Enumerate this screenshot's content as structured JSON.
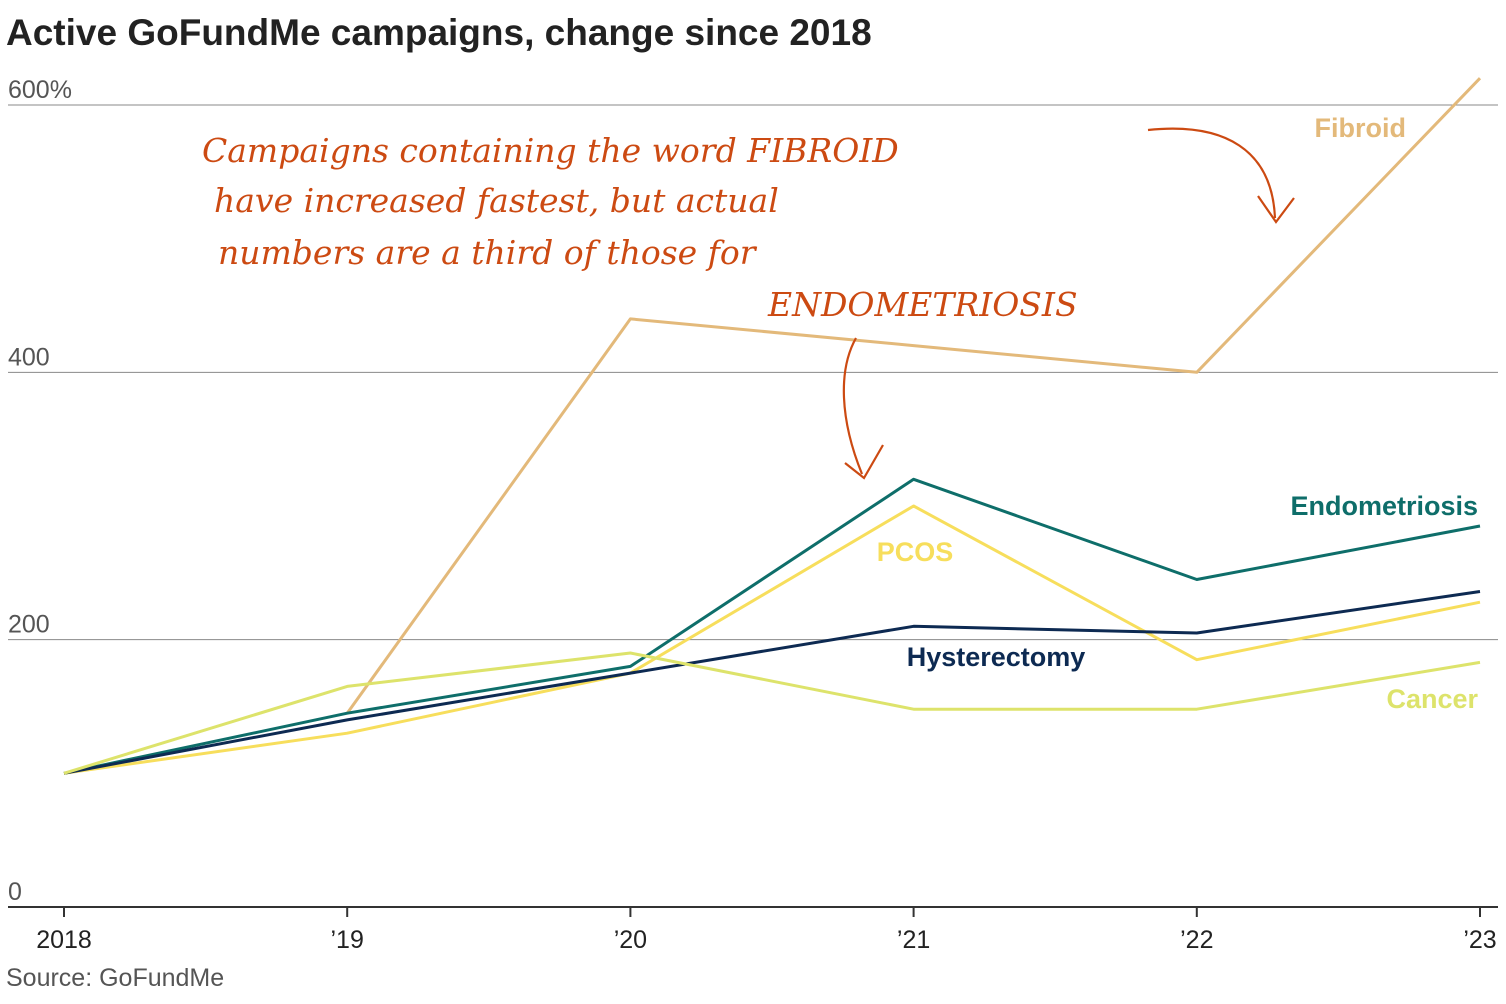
{
  "chart_data": {
    "type": "line",
    "title": "Active GoFundMe campaigns, change since 2018",
    "source": "Source: GoFundMe",
    "x": [
      "2018",
      "’19",
      "’20",
      "’21",
      "’22",
      "’23"
    ],
    "ylim": [
      0,
      620
    ],
    "yticks": [
      {
        "value": 600,
        "label": "600%"
      },
      {
        "value": 400,
        "label": "400"
      },
      {
        "value": 200,
        "label": "200"
      },
      {
        "value": 0,
        "label": "0"
      }
    ],
    "grid": true,
    "series": [
      {
        "name": "Fibroid",
        "color": "#e3b97a",
        "values": [
          null,
          145,
          440,
          420,
          400,
          620
        ]
      },
      {
        "name": "Endometriosis",
        "color": "#0e6e6a",
        "values": [
          100,
          145,
          180,
          320,
          245,
          285
        ]
      },
      {
        "name": "PCOS",
        "color": "#f7de5c",
        "values": [
          100,
          130,
          175,
          300,
          185,
          228
        ]
      },
      {
        "name": "Hysterectomy",
        "color": "#0d2a52",
        "values": [
          100,
          140,
          175,
          210,
          205,
          236
        ]
      },
      {
        "name": "Cancer",
        "color": "#dde36b",
        "values": [
          100,
          165,
          190,
          148,
          148,
          183
        ]
      }
    ],
    "annotations": [
      {
        "lines": [
          "Campaigns containing the word FIBROID",
          "have increased fastest, but actual",
          "numbers are a third of those for",
          "ENDOMETRIOSIS"
        ],
        "color": "#cc4a12"
      }
    ]
  }
}
